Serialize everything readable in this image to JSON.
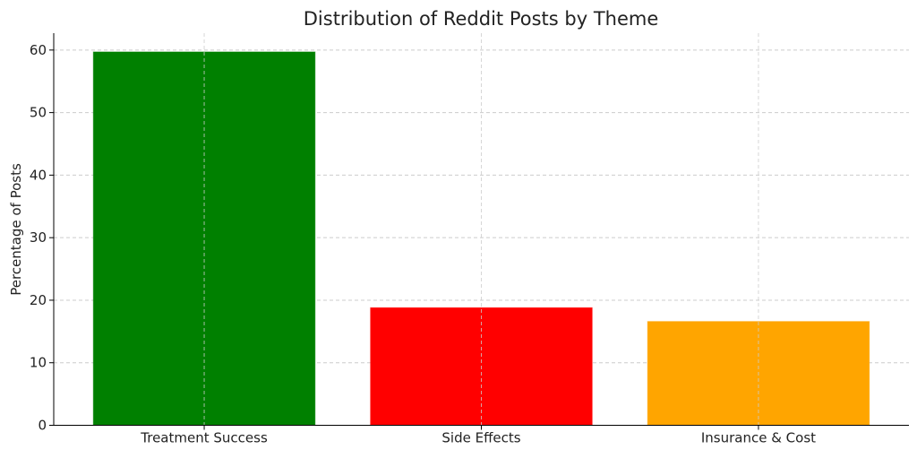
{
  "chart_data": {
    "type": "bar",
    "title": "Distribution of Reddit Posts by Theme",
    "xlabel": "",
    "ylabel": "Percentage of Posts",
    "categories": [
      "Treatment Success",
      "Side Effects",
      "Insurance & Cost"
    ],
    "values": [
      59.7,
      18.8,
      16.6
    ],
    "colors": [
      "#008000",
      "#ff0000",
      "#ffa500"
    ],
    "ylim": [
      0,
      62.7
    ],
    "yticks": [
      0,
      10,
      20,
      30,
      40,
      50,
      60
    ],
    "grid": true,
    "legend": "none"
  }
}
